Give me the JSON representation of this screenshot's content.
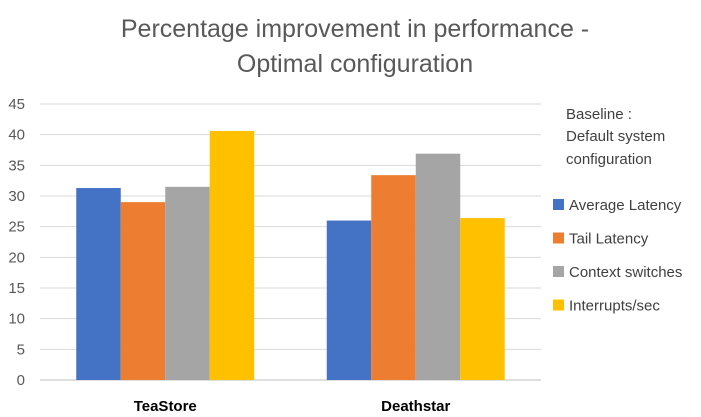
{
  "chart_data": {
    "type": "bar",
    "title": [
      "Percentage improvement in performance -",
      "Optimal configuration"
    ],
    "categories": [
      "TeaStore",
      "Deathstar"
    ],
    "series": [
      {
        "name": "Average Latency",
        "color": "#4472C4",
        "values": [
          31.3,
          26.0
        ]
      },
      {
        "name": "Tail Latency",
        "color": "#ED7D31",
        "values": [
          29.0,
          33.4
        ]
      },
      {
        "name": "Context switches",
        "color": "#A5A5A5",
        "values": [
          31.5,
          36.9
        ]
      },
      {
        "name": "Interrupts/sec",
        "color": "#FFC000",
        "values": [
          40.6,
          26.4
        ]
      }
    ],
    "ylim": [
      0,
      45
    ],
    "yticks": [
      0,
      5,
      10,
      15,
      20,
      25,
      30,
      35,
      40,
      45
    ],
    "grid": true,
    "legend_placement": "right",
    "note": [
      "Baseline :",
      "Default system",
      "configuration"
    ]
  }
}
